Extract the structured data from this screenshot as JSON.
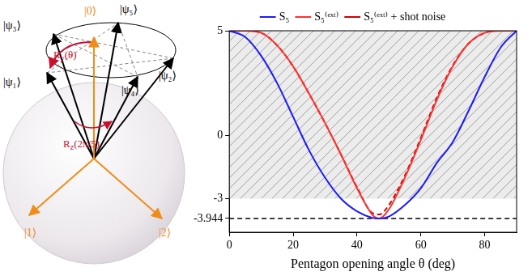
{
  "chart_data": {
    "type": "line",
    "x_label": "Pentagon opening angle θ (deg)",
    "x": [
      0,
      5,
      10,
      15,
      20,
      25,
      30,
      35,
      40,
      45,
      47,
      50,
      55,
      60,
      65,
      70,
      75,
      80,
      85,
      90
    ],
    "series": [
      {
        "name": "S₅",
        "color": "#1a1aff",
        "line_style": "solid",
        "values": [
          5,
          4.7,
          3.8,
          2.5,
          0.9,
          -0.7,
          -2.0,
          -3.0,
          -3.6,
          -3.92,
          -3.944,
          -3.85,
          -3.3,
          -2.5,
          -1.3,
          -0.3,
          1.2,
          2.8,
          4.2,
          5
        ]
      },
      {
        "name": "S₅⁽ᵉˣᵗ⁾",
        "color": "#ff3030",
        "line_style": "solid",
        "values": [
          5,
          5,
          4.9,
          4.3,
          3.3,
          2.0,
          0.6,
          -0.9,
          -2.5,
          -3.8,
          -3.944,
          -3.5,
          -2.0,
          -0.2,
          1.7,
          3.3,
          4.4,
          4.9,
          5,
          5
        ]
      },
      {
        "name": "S₅⁽ᵉˣᵗ⁾ + shot noise",
        "color": "#d00000",
        "line_style": "dashed",
        "values": [
          5,
          5,
          4.9,
          4.3,
          3.3,
          2.0,
          0.6,
          -0.9,
          -2.45,
          -3.7,
          -3.75,
          -3.3,
          -1.9,
          -0.1,
          1.8,
          3.35,
          4.4,
          4.9,
          5,
          5
        ]
      }
    ],
    "xlim": [
      0,
      90
    ],
    "xticks": [
      0,
      20,
      40,
      60,
      80
    ],
    "ylim": [
      -4.6,
      5
    ],
    "yticks": [
      5,
      0,
      -3,
      -3.944
    ],
    "excluded_region": [
      -3,
      5
    ],
    "reference_line": -3.944,
    "grid": false,
    "legend": "top"
  },
  "diagram": {
    "states": [
      "|ψ₁⟩",
      "|ψ₂⟩",
      "|ψ₃⟩",
      "|ψ₄⟩",
      "|ψ₅⟩"
    ],
    "basis": [
      "|0⟩",
      "|1⟩",
      "|2⟩"
    ],
    "rotations": [
      {
        "symbol": "R",
        "subscript": "y",
        "argument": "(θ)"
      },
      {
        "symbol": "R",
        "subscript": "z",
        "argument": "(2π/5)"
      }
    ]
  }
}
